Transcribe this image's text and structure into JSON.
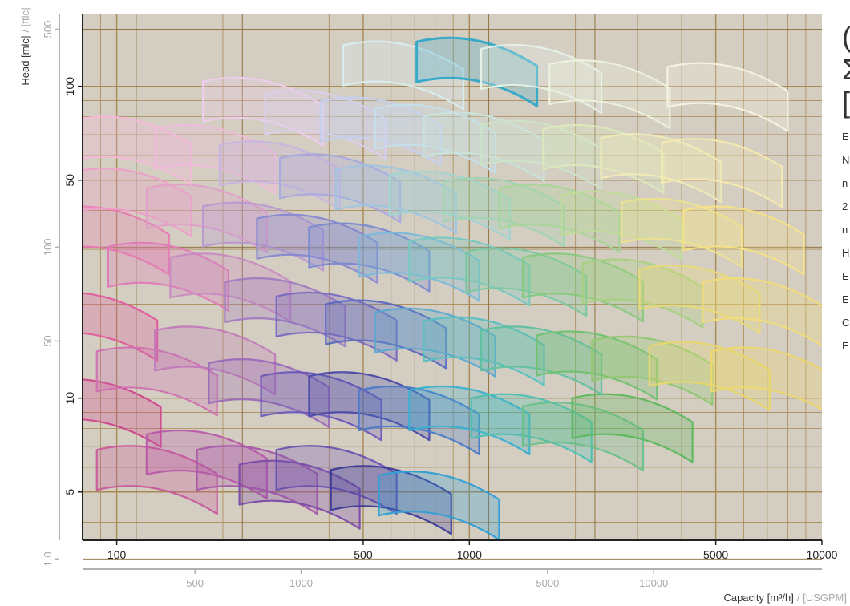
{
  "chart_data": {
    "type": "scatter",
    "variant": "pump-performance-range-chart",
    "x_axis": {
      "label": "Capacity [m³/h]",
      "label_secondary": "/ [USGPM]",
      "scale": "log",
      "range": [
        80,
        10000
      ],
      "ticks": [
        "100",
        "500",
        "1000",
        "5000",
        "10000"
      ],
      "secondary_ticks": [
        "500",
        "1000",
        "5000",
        "10000"
      ]
    },
    "y_axis": {
      "label": "Head [mlc]",
      "label_secondary": "/ [ftlc]",
      "scale": "log",
      "range": [
        3.5,
        170
      ],
      "ticks": [
        "5",
        "10",
        "50",
        "100"
      ],
      "secondary_ticks": [
        "1 0",
        "50",
        "100",
        "500"
      ]
    },
    "grid": true,
    "plot_background": "#d4cdc2",
    "grid_color": "#a88a55",
    "palette": [
      "#d0468c",
      "#b05ab0",
      "#5a4aa8",
      "#2f9fd6",
      "#4fc2a8",
      "#5cb85c",
      "#e8d66a"
    ],
    "highlight_color": "#2fa8c8",
    "regions": [
      {
        "q": 90,
        "h": 9.5,
        "color": "#d0468c"
      },
      {
        "q": 130,
        "h": 5.8,
        "color": "#c85a9c"
      },
      {
        "q": 180,
        "h": 6.5,
        "color": "#b85aa8"
      },
      {
        "q": 250,
        "h": 5.8,
        "color": "#a85aa8"
      },
      {
        "q": 330,
        "h": 5.2,
        "color": "#7a4aa8"
      },
      {
        "q": 420,
        "h": 5.8,
        "color": "#6a52b0"
      },
      {
        "q": 600,
        "h": 5.0,
        "color": "#3a3a98"
      },
      {
        "q": 820,
        "h": 4.8,
        "color": "#2f9fd6"
      },
      {
        "q": 88,
        "h": 18,
        "color": "#e05a9c"
      },
      {
        "q": 130,
        "h": 12,
        "color": "#d070b0"
      },
      {
        "q": 190,
        "h": 14,
        "color": "#c07ab8"
      },
      {
        "q": 270,
        "h": 11,
        "color": "#9a6ab8"
      },
      {
        "q": 380,
        "h": 10,
        "color": "#6a5ab8"
      },
      {
        "q": 520,
        "h": 10,
        "color": "#4a4aa8"
      },
      {
        "q": 720,
        "h": 9,
        "color": "#4a7ac8"
      },
      {
        "q": 1000,
        "h": 9,
        "color": "#3ab0d0"
      },
      {
        "q": 1500,
        "h": 8.5,
        "color": "#4cc0b0"
      },
      {
        "q": 2100,
        "h": 8,
        "color": "#6ac088"
      },
      {
        "q": 2900,
        "h": 8.5,
        "color": "#5cb85c"
      },
      {
        "q": 95,
        "h": 34,
        "color": "#e87ab0"
      },
      {
        "q": 140,
        "h": 26,
        "color": "#e07ab8"
      },
      {
        "q": 210,
        "h": 24,
        "color": "#c88ac0"
      },
      {
        "q": 300,
        "h": 20,
        "color": "#a07ac0"
      },
      {
        "q": 420,
        "h": 18,
        "color": "#7a6ac0"
      },
      {
        "q": 580,
        "h": 17,
        "color": "#5a6ac0"
      },
      {
        "q": 800,
        "h": 16,
        "color": "#5aa8d0"
      },
      {
        "q": 1100,
        "h": 15,
        "color": "#5ac0c0"
      },
      {
        "q": 1600,
        "h": 14,
        "color": "#60c0a0"
      },
      {
        "q": 2300,
        "h": 13.5,
        "color": "#70c070"
      },
      {
        "q": 3300,
        "h": 13,
        "color": "#90c870"
      },
      {
        "q": 4800,
        "h": 12.5,
        "color": "#e8d66a"
      },
      {
        "q": 7200,
        "h": 12,
        "color": "#eed86c"
      },
      {
        "q": 110,
        "h": 45,
        "color": "#eea0c8"
      },
      {
        "q": 180,
        "h": 40,
        "color": "#e0a0c8"
      },
      {
        "q": 260,
        "h": 35,
        "color": "#b898d0"
      },
      {
        "q": 370,
        "h": 32,
        "color": "#8888d0"
      },
      {
        "q": 520,
        "h": 30,
        "color": "#7a8ad0"
      },
      {
        "q": 720,
        "h": 28,
        "color": "#7ab8d8"
      },
      {
        "q": 1000,
        "h": 27,
        "color": "#78c8c0"
      },
      {
        "q": 1450,
        "h": 25,
        "color": "#7ac8a0"
      },
      {
        "q": 2100,
        "h": 24,
        "color": "#88c880"
      },
      {
        "q": 3100,
        "h": 23,
        "color": "#a8d080"
      },
      {
        "q": 4500,
        "h": 22,
        "color": "#e8da78"
      },
      {
        "q": 6800,
        "h": 20,
        "color": "#f0dc78"
      },
      {
        "q": 110,
        "h": 66,
        "color": "#f4b8d8"
      },
      {
        "q": 190,
        "h": 62,
        "color": "#eebada"
      },
      {
        "q": 290,
        "h": 55,
        "color": "#c8b4e0"
      },
      {
        "q": 430,
        "h": 50,
        "color": "#a8a8e0"
      },
      {
        "q": 620,
        "h": 46,
        "color": "#a0c4e0"
      },
      {
        "q": 880,
        "h": 44,
        "color": "#a0d4d0"
      },
      {
        "q": 1250,
        "h": 42,
        "color": "#a0d4b0"
      },
      {
        "q": 1800,
        "h": 40,
        "color": "#a8d498"
      },
      {
        "q": 2700,
        "h": 38,
        "color": "#c0dc98"
      },
      {
        "q": 4000,
        "h": 36,
        "color": "#ece290"
      },
      {
        "q": 6000,
        "h": 34,
        "color": "#f4e288"
      },
      {
        "q": 260,
        "h": 88,
        "color": "#eeccee"
      },
      {
        "q": 390,
        "h": 80,
        "color": "#d8d0ee"
      },
      {
        "q": 560,
        "h": 76,
        "color": "#c4d0ee"
      },
      {
        "q": 800,
        "h": 72,
        "color": "#c4e0ec"
      },
      {
        "q": 1100,
        "h": 68,
        "color": "#c8e4dc"
      },
      {
        "q": 1600,
        "h": 64,
        "color": "#cce4c8"
      },
      {
        "q": 2400,
        "h": 62,
        "color": "#dce8bc"
      },
      {
        "q": 3500,
        "h": 58,
        "color": "#f0ecb8"
      },
      {
        "q": 5200,
        "h": 56,
        "color": "#f6eab0"
      },
      {
        "q": 650,
        "h": 115,
        "color": "#d8eef0"
      },
      {
        "q": 1050,
        "h": 118,
        "color": "#2fa8c8"
      },
      {
        "q": 1600,
        "h": 112,
        "color": "#e6f2e8"
      },
      {
        "q": 2500,
        "h": 100,
        "color": "#ecf2dc"
      },
      {
        "q": 5400,
        "h": 98,
        "color": "#f4f2e0"
      }
    ]
  },
  "side_text": {
    "heading_lines": [
      "(",
      "Σ",
      "["
    ],
    "body_lines": [
      "E",
      "N",
      "n",
      "2",
      "n",
      "H",
      "E",
      "E",
      "C",
      "E"
    ]
  }
}
